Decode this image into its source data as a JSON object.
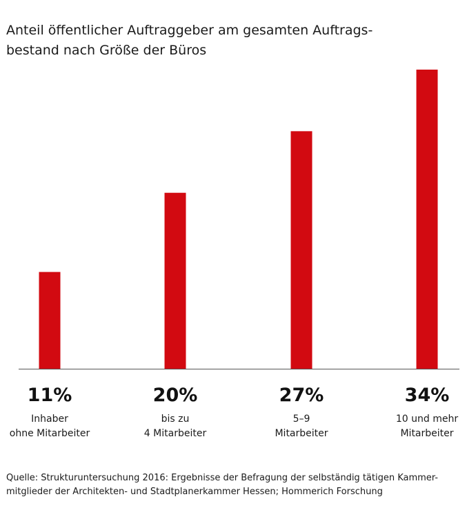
{
  "title_lines": [
    "Anteil öffentlicher Auftraggeber am gesamten Auftrags-",
    "bestand nach Größe der Büros"
  ],
  "source_lines": [
    "Quelle: Strukturuntersuchung 2016: Ergebnisse der Befragung der selbständig tätigen Kammer-",
    "mitglieder der Architekten- und Stadtplanerkammer Hessen; Hommerich Forschung"
  ],
  "colors": {
    "bar": "#d20a11",
    "axis": "#555555"
  },
  "chart_data": {
    "type": "bar",
    "title": "Anteil öffentlicher Auftraggeber am gesamten Auftragsbestand nach Größe der Büros",
    "unit": "%",
    "categories": [
      [
        "Inhaber",
        "ohne Mitarbeiter"
      ],
      [
        "bis zu",
        "4 Mitarbeiter"
      ],
      [
        "5–9",
        "Mitarbeiter"
      ],
      [
        "10 und mehr",
        "Mitarbeiter"
      ]
    ],
    "values": [
      11,
      20,
      27,
      34
    ],
    "value_labels": [
      "11%",
      "20%",
      "27%",
      "34%"
    ],
    "ylim": [
      0,
      34
    ],
    "grid": false,
    "legend": "none"
  }
}
